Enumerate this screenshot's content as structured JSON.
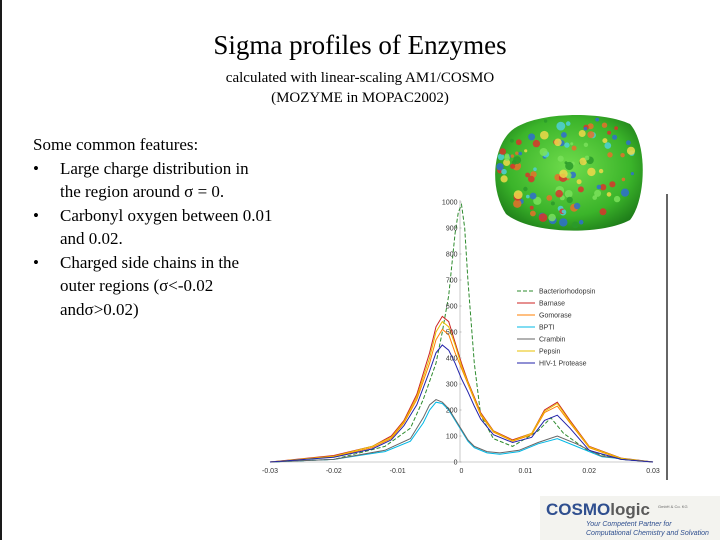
{
  "slide": {
    "title": "Sigma profiles of Enzymes",
    "subtitle_line1": "calculated with linear-scaling AM1/COSMO",
    "subtitle_line2": "(MOZYME in MOPAC2002)"
  },
  "features": {
    "heading": "Some common features:",
    "items": [
      "Large charge distribution in the region around σ = 0.",
      "Carbonyl oxygen between 0.01 and 0.02.",
      "Charged side chains in the outer regions (σ<-0.02 andσ>0.02)"
    ]
  },
  "logo": {
    "name_part1": "COSMO",
    "name_part2": "logic",
    "small_text": "GmbH & Co. KG",
    "tagline_line1": "Your Competent Partner for",
    "tagline_line2": "Computational Chemistry and Solvation"
  },
  "chart_data": {
    "type": "line",
    "x_ticks": [
      "-0.03",
      "-0.02",
      "-0.01",
      "0",
      "0.01",
      "0.02",
      "0.03"
    ],
    "y_ticks": [
      "0",
      "100",
      "200",
      "300",
      "400",
      "500",
      "600",
      "700",
      "800",
      "900",
      "1000"
    ],
    "xlim": [
      -0.03,
      0.03
    ],
    "ylim": [
      0,
      1000
    ],
    "grid": false,
    "legend_position": "right",
    "series": [
      {
        "name": "Bacteriorhodopsin",
        "color": "#2e8b2e",
        "dash": "4,2",
        "x": [
          -0.03,
          -0.02,
          -0.012,
          -0.008,
          -0.006,
          -0.004,
          -0.003,
          -0.002,
          -0.0015,
          -0.001,
          -0.0005,
          0,
          0.0005,
          0.001,
          0.002,
          0.003,
          0.005,
          0.008,
          0.012,
          0.014,
          0.016,
          0.02,
          0.025,
          0.03
        ],
        "y": [
          0,
          10,
          60,
          130,
          240,
          380,
          500,
          640,
          760,
          880,
          960,
          990,
          900,
          700,
          380,
          180,
          90,
          60,
          120,
          170,
          110,
          40,
          10,
          0
        ]
      },
      {
        "name": "Barnase",
        "color": "#cc2222",
        "dash": "",
        "x": [
          -0.03,
          -0.02,
          -0.014,
          -0.011,
          -0.009,
          -0.007,
          -0.005,
          -0.004,
          -0.003,
          -0.002,
          -0.001,
          0,
          0.001,
          0.002,
          0.003,
          0.005,
          0.008,
          0.011,
          0.013,
          0.015,
          0.017,
          0.02,
          0.025,
          0.03
        ],
        "y": [
          0,
          25,
          60,
          100,
          160,
          260,
          420,
          520,
          560,
          540,
          460,
          380,
          310,
          250,
          190,
          120,
          85,
          110,
          200,
          230,
          160,
          60,
          15,
          0
        ]
      },
      {
        "name": "Gomorase",
        "color": "#ff7f00",
        "dash": "",
        "x": [
          -0.03,
          -0.02,
          -0.014,
          -0.011,
          -0.009,
          -0.007,
          -0.005,
          -0.004,
          -0.003,
          -0.002,
          -0.001,
          0,
          0.001,
          0.002,
          0.003,
          0.005,
          0.008,
          0.011,
          0.013,
          0.015,
          0.017,
          0.02,
          0.025,
          0.03
        ],
        "y": [
          0,
          20,
          55,
          90,
          150,
          240,
          380,
          470,
          510,
          490,
          420,
          360,
          300,
          240,
          180,
          115,
          80,
          105,
          190,
          215,
          150,
          55,
          12,
          0
        ]
      },
      {
        "name": "BPTI",
        "color": "#00b8e6",
        "dash": "",
        "x": [
          -0.03,
          -0.02,
          -0.012,
          -0.008,
          -0.006,
          -0.005,
          -0.004,
          -0.003,
          -0.002,
          -0.001,
          0,
          0.001,
          0.002,
          0.004,
          0.006,
          0.009,
          0.012,
          0.015,
          0.018,
          0.022,
          0.03
        ],
        "y": [
          0,
          10,
          40,
          80,
          150,
          200,
          230,
          225,
          200,
          160,
          120,
          80,
          55,
          35,
          30,
          40,
          70,
          90,
          60,
          20,
          0
        ]
      },
      {
        "name": "Crambin",
        "color": "#666666",
        "dash": "",
        "x": [
          -0.03,
          -0.02,
          -0.012,
          -0.008,
          -0.006,
          -0.005,
          -0.004,
          -0.003,
          -0.002,
          -0.001,
          0,
          0.001,
          0.002,
          0.004,
          0.006,
          0.009,
          0.012,
          0.015,
          0.018,
          0.022,
          0.03
        ],
        "y": [
          0,
          10,
          45,
          90,
          170,
          220,
          240,
          230,
          205,
          165,
          125,
          85,
          60,
          40,
          35,
          45,
          75,
          100,
          70,
          22,
          0
        ]
      },
      {
        "name": "Pepsin",
        "color": "#e8c000",
        "dash": "",
        "x": [
          -0.03,
          -0.02,
          -0.014,
          -0.011,
          -0.009,
          -0.007,
          -0.005,
          -0.004,
          -0.003,
          -0.002,
          -0.001,
          0,
          0.001,
          0.002,
          0.003,
          0.005,
          0.008,
          0.011,
          0.013,
          0.015,
          0.017,
          0.02,
          0.025,
          0.03
        ],
        "y": [
          0,
          22,
          60,
          95,
          155,
          250,
          400,
          500,
          540,
          520,
          450,
          370,
          305,
          245,
          185,
          118,
          82,
          110,
          195,
          225,
          155,
          58,
          14,
          0
        ]
      },
      {
        "name": "HIV-1 Protease",
        "color": "#2222aa",
        "dash": "",
        "x": [
          -0.03,
          -0.02,
          -0.014,
          -0.011,
          -0.009,
          -0.007,
          -0.005,
          -0.004,
          -0.003,
          -0.002,
          -0.001,
          0,
          0.001,
          0.002,
          0.003,
          0.005,
          0.008,
          0.011,
          0.013,
          0.015,
          0.017,
          0.02,
          0.025,
          0.03
        ],
        "y": [
          0,
          18,
          50,
          85,
          140,
          220,
          350,
          420,
          450,
          430,
          380,
          320,
          270,
          215,
          165,
          105,
          75,
          95,
          160,
          180,
          130,
          45,
          10,
          0
        ]
      }
    ]
  }
}
